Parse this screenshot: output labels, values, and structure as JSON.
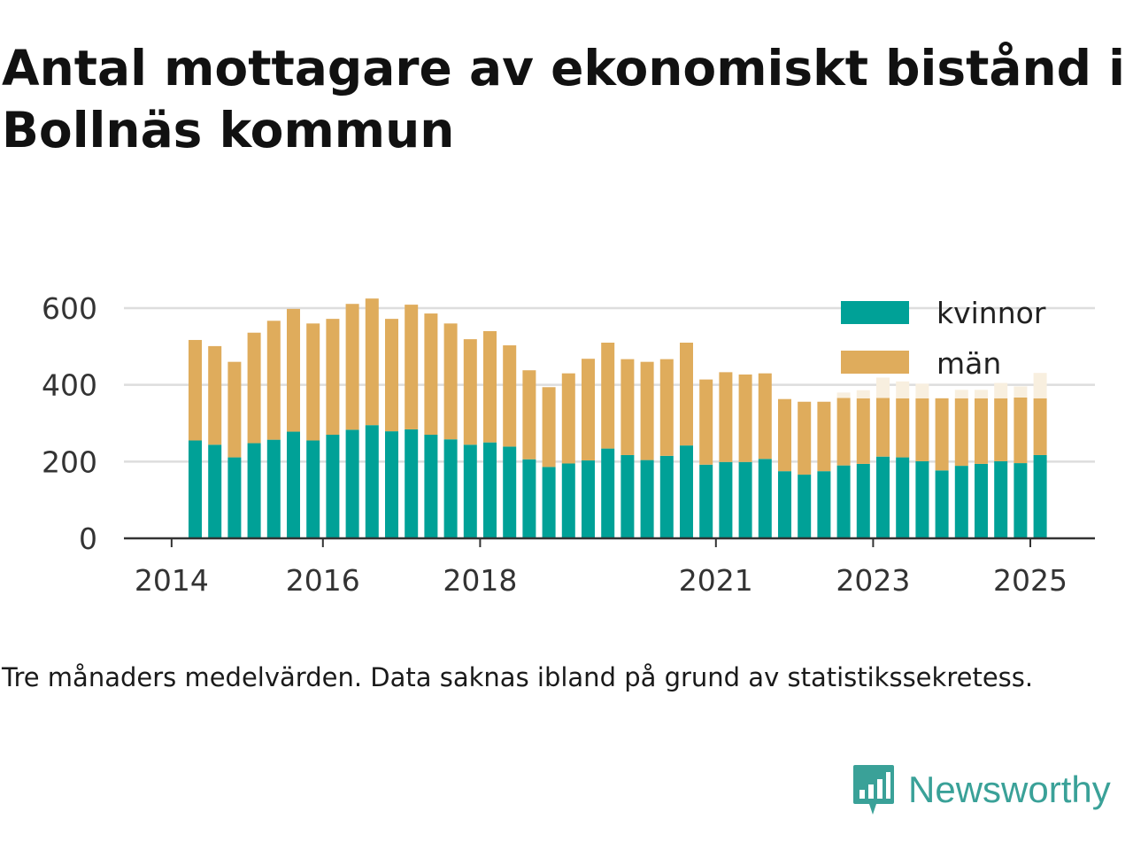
{
  "title": "Antal mottagare av ekonomiskt bistånd i Bollnäs kommun",
  "note": "Tre månaders medelvärden. Data saknas ibland på grund av statistikssekretess.",
  "brand": {
    "name": "Newsworthy",
    "icon": "newsworthy-logo-icon",
    "color": "#3aa198"
  },
  "colors": {
    "kvinnor": "#00a197",
    "man": "#dfac5c",
    "estimated": "#f8efdf",
    "grid": "#dddddd",
    "axis": "#333333"
  },
  "chart_data": {
    "type": "bar",
    "stacked": true,
    "ylim": [
      0,
      650
    ],
    "yticks": [
      0,
      200,
      400,
      600
    ],
    "xticks": [
      "2014",
      "2016",
      "2018",
      "2021",
      "2023",
      "2025"
    ],
    "legend": {
      "position": "top-right",
      "entries": [
        "kvinnor",
        "män"
      ]
    },
    "grid": true,
    "x": [
      "2014-Q2",
      "2014-Q3",
      "2014-Q4",
      "2015-Q1",
      "2015-Q2",
      "2015-Q3",
      "2015-Q4",
      "2016-Q1",
      "2016-Q2",
      "2016-Q3",
      "2016-Q4",
      "2017-Q1",
      "2017-Q2",
      "2017-Q3",
      "2017-Q4",
      "2018-Q1",
      "2018-Q2",
      "2018-Q3",
      "2018-Q4",
      "2019-Q1",
      "2019-Q2",
      "2019-Q3",
      "2019-Q4",
      "2020-Q1",
      "2020-Q2",
      "2020-Q3",
      "2020-Q4",
      "2021-Q1",
      "2021-Q2",
      "2021-Q3",
      "2021-Q4",
      "2022-Q1",
      "2022-Q2",
      "2022-Q3",
      "2022-Q4",
      "2023-Q1",
      "2023-Q2",
      "2023-Q3",
      "2023-Q4",
      "2024-Q1",
      "2024-Q2",
      "2024-Q3",
      "2024-Q4",
      "2025-Q1"
    ],
    "series": [
      {
        "name": "kvinnor",
        "values": [
          255,
          244,
          211,
          248,
          257,
          278,
          255,
          270,
          283,
          295,
          279,
          284,
          270,
          258,
          244,
          250,
          239,
          206,
          186,
          195,
          203,
          234,
          217,
          204,
          215,
          242,
          192,
          199,
          199,
          207,
          175,
          166,
          175,
          190,
          194,
          213,
          211,
          201,
          177,
          189,
          194,
          201,
          196,
          217
        ]
      },
      {
        "name": "män",
        "values": [
          262,
          257,
          249,
          288,
          310,
          320,
          305,
          302,
          328,
          330,
          293,
          325,
          316,
          302,
          275,
          290,
          264,
          232,
          208,
          235,
          265,
          276,
          250,
          256,
          252,
          268,
          222,
          234,
          228,
          223,
          188,
          190,
          181,
          176,
          171,
          153,
          154,
          164,
          188,
          176,
          171,
          164,
          171,
          148
        ]
      },
      {
        "name": "män (skattat)",
        "values": [
          0,
          0,
          0,
          0,
          0,
          0,
          0,
          0,
          0,
          0,
          0,
          0,
          0,
          0,
          0,
          0,
          0,
          0,
          0,
          0,
          0,
          0,
          0,
          0,
          0,
          0,
          0,
          0,
          0,
          0,
          0,
          0,
          0,
          14,
          21,
          53,
          44,
          38,
          0,
          22,
          22,
          40,
          29,
          66
        ]
      }
    ]
  }
}
